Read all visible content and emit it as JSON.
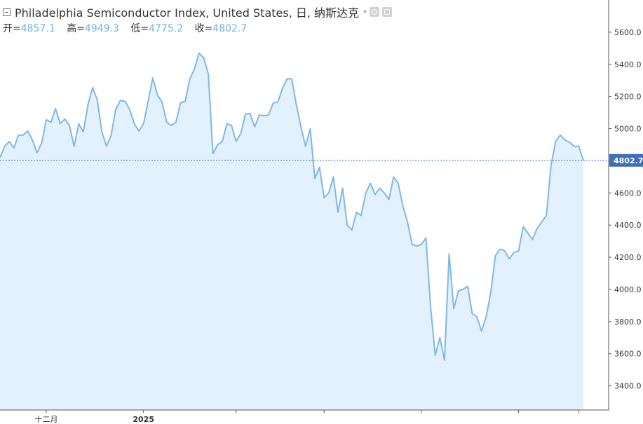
{
  "legend": {
    "title": "Philadelphia Semiconductor Index, United States, 日, 纳斯达克",
    "open_label": "开=",
    "open_value": "4857.1",
    "high_label": "高=",
    "high_value": "4949.3",
    "low_label": "低=",
    "low_value": "4775.2",
    "close_label": "收=",
    "close_value": "4802.7",
    "collapse_icon": "collapse-box-icon",
    "caret_icon": "chevron-down-icon",
    "eye_icon": "eye-icon",
    "settings_icon": "gear-icon"
  },
  "colors": {
    "line": "#7fb8e6",
    "fill": "#e2f1fb",
    "last_price_bg": "#3f6fb5",
    "last_price_line": "#3f6fb5",
    "axis": "#555555",
    "value": "#6fb2e3"
  },
  "chart_data": {
    "type": "area",
    "ylim": [
      3250,
      5800
    ],
    "grid": false,
    "y_ticks": [
      3400,
      3600,
      3800,
      4000,
      4200,
      4400,
      4600,
      4800,
      5000,
      5200,
      5400,
      5600
    ],
    "y_tick_labels": [
      "3400.0",
      "3600.0",
      "3800.0",
      "4000.0",
      "4200.0",
      "4400.0",
      "4600.0",
      "4800.0",
      "5000.0",
      "5200.0",
      "5400.0",
      "5600.0"
    ],
    "x_ticks": [
      {
        "index": 10,
        "label": "十二月"
      },
      {
        "index": 31,
        "label": "2025"
      },
      {
        "index": 51,
        "label": ""
      },
      {
        "index": 70,
        "label": ""
      },
      {
        "index": 91,
        "label": ""
      },
      {
        "index": 112,
        "label": ""
      },
      {
        "index": 125,
        "label": ""
      }
    ],
    "last_value": 4802.7,
    "last_value_label": "4802.7",
    "series": [
      {
        "values": [
          4820,
          4890,
          4920,
          4880,
          4960,
          4960,
          4985,
          4930,
          4850,
          4910,
          5055,
          5040,
          5125,
          5030,
          5060,
          5020,
          4890,
          5030,
          4980,
          5150,
          5255,
          5180,
          4980,
          4890,
          4960,
          5120,
          5175,
          5170,
          5120,
          5030,
          4985,
          5030,
          5170,
          5315,
          5210,
          5165,
          5040,
          5020,
          5040,
          5160,
          5170,
          5310,
          5370,
          5470,
          5440,
          5340,
          4845,
          4900,
          4920,
          5030,
          5020,
          4920,
          4970,
          5090,
          5095,
          5010,
          5085,
          5080,
          5085,
          5160,
          5165,
          5250,
          5310,
          5310,
          5150,
          5010,
          4890,
          5000,
          4690,
          4760,
          4570,
          4600,
          4700,
          4480,
          4630,
          4400,
          4370,
          4480,
          4460,
          4600,
          4660,
          4590,
          4630,
          4600,
          4560,
          4700,
          4660,
          4520,
          4420,
          4280,
          4270,
          4280,
          4320,
          3890,
          3590,
          3700,
          3560,
          4220,
          3880,
          3990,
          4000,
          4020,
          3850,
          3830,
          3740,
          3830,
          3980,
          4210,
          4250,
          4240,
          4190,
          4230,
          4240,
          4390,
          4350,
          4310,
          4380,
          4420,
          4460,
          4770,
          4920,
          4960,
          4930,
          4915,
          4890,
          4890,
          4802.7
        ]
      }
    ]
  }
}
